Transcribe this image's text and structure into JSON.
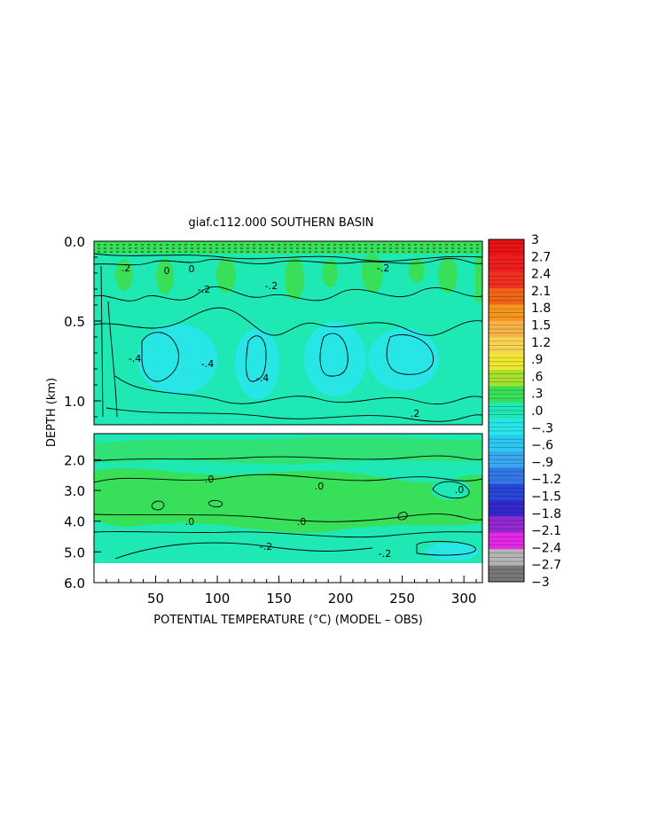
{
  "chart_data": {
    "type": "heatmap",
    "title": "giaf.c112.000 SOUTHERN BASIN",
    "xlabel": "POTENTIAL TEMPERATURE (°C) (MODEL – OBS)",
    "ylabel": "DEPTH (km)",
    "x_ticks": [
      "50",
      "100",
      "150",
      "200",
      "250",
      "300"
    ],
    "xlim": [
      0,
      315
    ],
    "upper_panel": {
      "ylim": [
        0.0,
        1.15
      ],
      "y_ticks": [
        "0.0",
        "0.5",
        "1.0"
      ]
    },
    "lower_panel": {
      "ylim": [
        1.15,
        6.0
      ],
      "y_ticks": [
        "2.0",
        "3.0",
        "4.0",
        "5.0",
        "6.0"
      ]
    },
    "colorbar": {
      "levels": [
        "3",
        "2.7",
        "2.4",
        "2.1",
        "1.8",
        "1.5",
        "1.2",
        ".9",
        ".6",
        ".3",
        ".0",
        "−.3",
        "−.6",
        "−.9",
        "−1.2",
        "−1.5",
        "−1.8",
        "−2.1",
        "−2.4",
        "−2.7",
        "−3"
      ],
      "colors": [
        "#e81414",
        "#ee1e1e",
        "#f03020",
        "#f26418",
        "#f5961e",
        "#f7b24a",
        "#f7d452",
        "#f0e830",
        "#a8e030",
        "#38e05a",
        "#1ee8b4",
        "#28e6e6",
        "#2cc8f2",
        "#3aa8ee",
        "#3278e6",
        "#2846d8",
        "#3428cc",
        "#9628d2",
        "#e628e6",
        "#b4b4b4",
        "#787878"
      ]
    },
    "contour_labels": [
      ".2",
      "0",
      "-.2",
      "-.2",
      "-.4",
      "-.4",
      "-.4",
      ".2",
      "-.2",
      ".0",
      ".0",
      ".0",
      ".0",
      ".0",
      "-.2",
      "-.2",
      "0"
    ]
  }
}
